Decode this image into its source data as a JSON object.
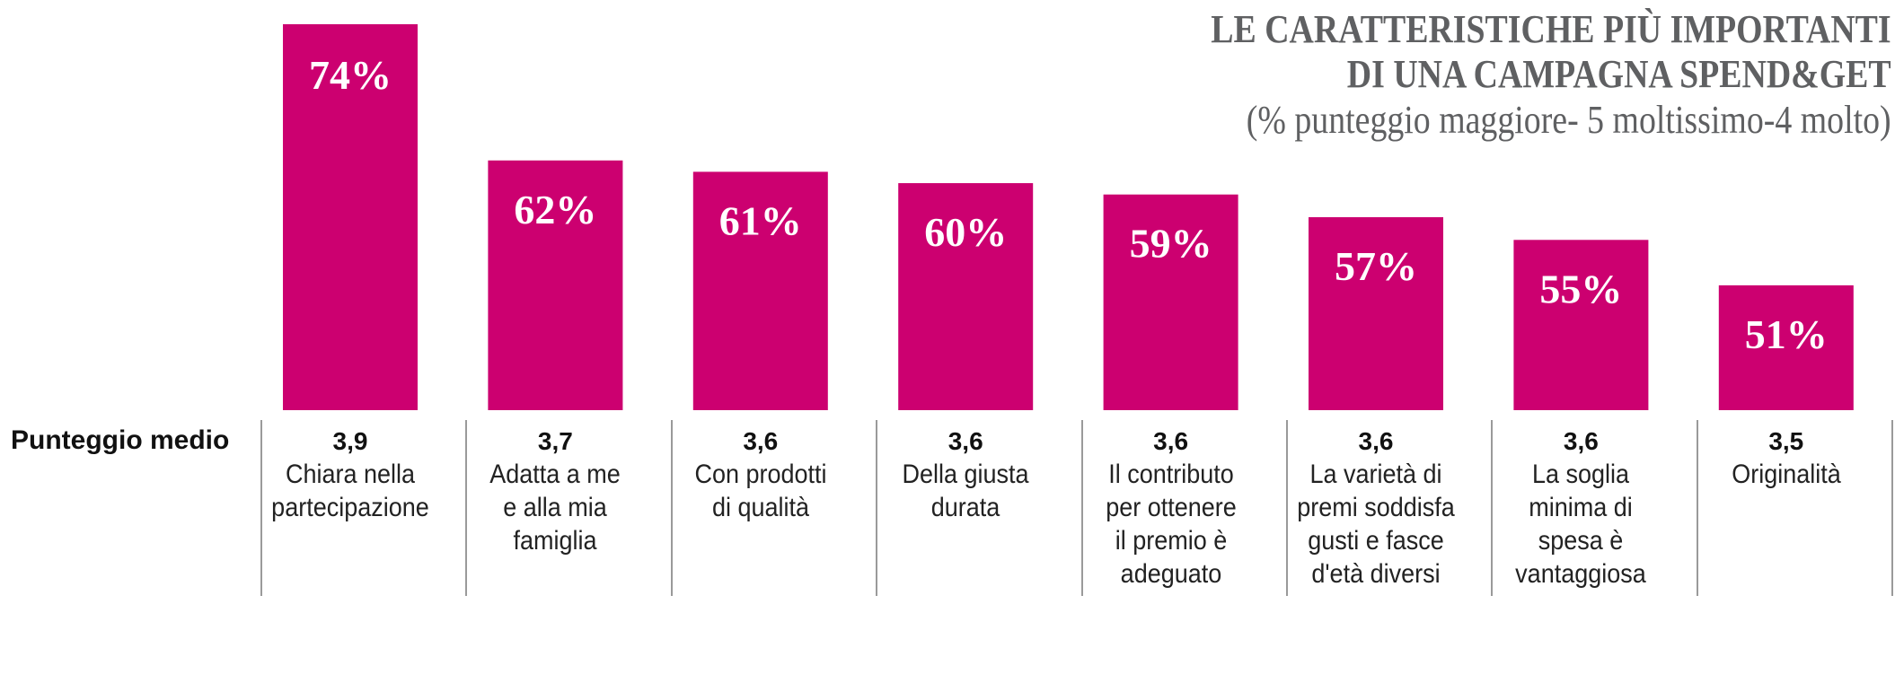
{
  "chart_data": {
    "type": "bar",
    "title": "LE CARATTERISTICHE PIÙ IMPORTANTI DI UNA CAMPAGNA SPEND&GET",
    "title_lines": [
      "LE CARATTERISTICHE PIÙ IMPORTANTI",
      "DI UNA CAMPAGNA SPEND&GET"
    ],
    "subtitle": "(% punteggio maggiore- 5 moltissimo-4 molto)",
    "xlabel": "",
    "ylabel": "",
    "ylim": [
      40,
      80
    ],
    "grid": false,
    "unit": "%",
    "bar_color": "#CC0070",
    "categories": [
      "Chiara nella\npartecipazione",
      "Adatta a me\ne alla mia\nfamiglia",
      "Con prodotti\ndi qualità",
      "Della giusta\ndurata",
      "Il contributo\nper ottenere\nil premio è\nadeguato",
      "La varietà di\npremi soddisfa\ngusti e fasce\nd'età diversi",
      "La soglia\nminima di\nspesa è\nvantaggiosa",
      "Originalità"
    ],
    "values": [
      74,
      62,
      61,
      60,
      59,
      57,
      55,
      51
    ],
    "value_labels": [
      "74%",
      "62%",
      "61%",
      "60%",
      "59%",
      "57%",
      "55%",
      "51%"
    ],
    "secondary_row_label": "Punteggio medio",
    "secondary_values": [
      "3,9",
      "3,7",
      "3,6",
      "3,6",
      "3,6",
      "3,6",
      "3,6",
      "3,5"
    ]
  }
}
